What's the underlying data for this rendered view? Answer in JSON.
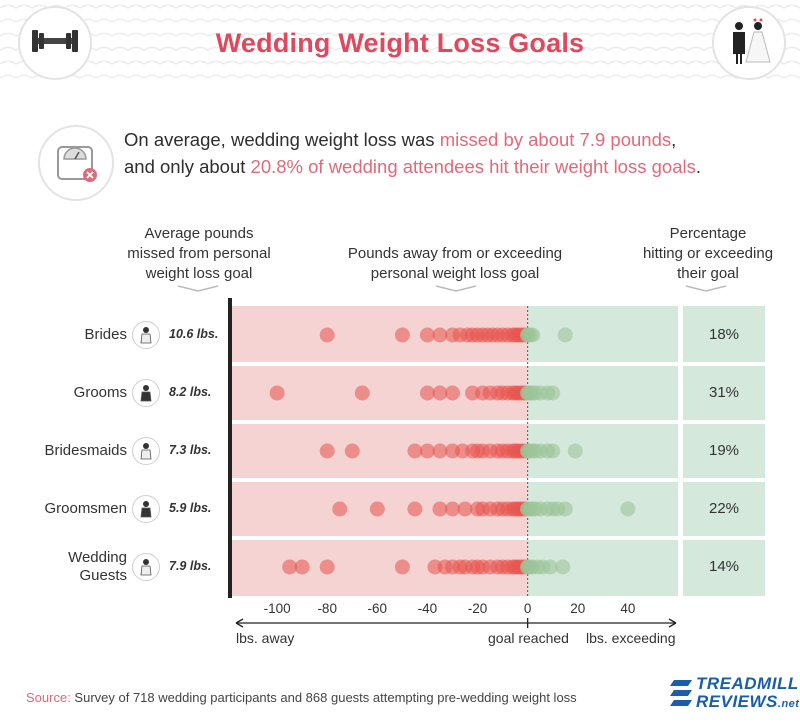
{
  "header": {
    "title": "Wedding Weight Loss Goals"
  },
  "summary": {
    "line1_pre": "On average, wedding weight loss was ",
    "line1_hl": "missed by about 7.9 pounds",
    "line1_post": ",",
    "line2_pre": "and only about ",
    "line2_hl": "20.8% of wedding attendees hit their weight loss goals",
    "line2_post": "."
  },
  "columns": {
    "left_line1": "Average pounds",
    "left_line2": "missed from personal",
    "left_line3": "weight loss goal",
    "mid_line1": "Pounds away from or exceeding",
    "mid_line2": "personal weight loss goal",
    "right_line1": "Percentage",
    "right_line2": "hitting or exceeding",
    "right_line3": "their goal"
  },
  "axis_notes": {
    "left": "lbs. away",
    "center": "goal reached",
    "right": "lbs. exceeding"
  },
  "source": {
    "label": "Source:",
    "text": " Survey of 718 wedding participants and 868 guests attempting pre-wedding weight loss"
  },
  "logo": {
    "line1": "TREADMILL",
    "line2": "REVIEWS",
    "suffix": ".net"
  },
  "colors": {
    "title": "#e0495d",
    "highlight": "#e0697a",
    "missed_bg": "#f4d3d2",
    "exceed_bg": "#d4e9dc",
    "dot_red": "#e8544f",
    "dot_green": "#9cc49a",
    "logo": "#1a5ea8"
  },
  "chart_data": {
    "type": "scatter",
    "xlim": [
      -118,
      60
    ],
    "x_ticks": [
      -100,
      -80,
      -60,
      -40,
      -20,
      0,
      20,
      40
    ],
    "x_tick_labels": [
      "-100",
      "-80",
      "-60",
      "-40",
      "-20",
      "0",
      "20",
      "40"
    ],
    "series": [
      {
        "name": "Brides",
        "line1": "Brides",
        "line2": "",
        "avg_missed": "10.6 lbs.",
        "pct_hit": "18%",
        "icon": "bride-icon",
        "points": [
          -80,
          -50,
          -40,
          -35,
          -30,
          -27,
          -24,
          -22,
          -20,
          -18,
          -16,
          -14,
          -12,
          -10,
          -8,
          -6,
          -5,
          -4,
          -3,
          -2,
          -1,
          0,
          0,
          1,
          2,
          15
        ]
      },
      {
        "name": "Grooms",
        "line1": "Grooms",
        "line2": "",
        "avg_missed": "8.2 lbs.",
        "pct_hit": "31%",
        "icon": "groom-icon",
        "points": [
          -100,
          -66,
          -40,
          -35,
          -30,
          -22,
          -18,
          -15,
          -12,
          -10,
          -8,
          -6,
          -5,
          -4,
          -3,
          -2,
          -1,
          0,
          0,
          1,
          2,
          3,
          5,
          8,
          10
        ]
      },
      {
        "name": "Bridesmaids",
        "line1": "Bridesmaids",
        "line2": "",
        "avg_missed": "7.3 lbs.",
        "pct_hit": "19%",
        "icon": "bridesmaid-icon",
        "points": [
          -80,
          -70,
          -45,
          -40,
          -35,
          -30,
          -26,
          -22,
          -20,
          -18,
          -15,
          -12,
          -10,
          -8,
          -6,
          -5,
          -4,
          -3,
          -2,
          -1,
          0,
          0,
          1,
          2,
          3,
          5,
          8,
          10,
          19
        ]
      },
      {
        "name": "Groomsmen",
        "line1": "Groomsmen",
        "line2": "",
        "avg_missed": "5.9 lbs.",
        "pct_hit": "22%",
        "icon": "groomsman-icon",
        "points": [
          -75,
          -60,
          -45,
          -35,
          -30,
          -25,
          -20,
          -18,
          -15,
          -12,
          -10,
          -8,
          -6,
          -5,
          -4,
          -3,
          -2,
          -1,
          0,
          0,
          1,
          2,
          3,
          5,
          8,
          10,
          12,
          15,
          40
        ]
      },
      {
        "name": "Wedding Guests",
        "line1": "Wedding",
        "line2": "Guests",
        "avg_missed": "7.9 lbs.",
        "pct_hit": "14%",
        "icon": "guests-icon",
        "points": [
          -95,
          -90,
          -80,
          -50,
          -37,
          -33,
          -30,
          -27,
          -25,
          -22,
          -20,
          -18,
          -15,
          -12,
          -10,
          -8,
          -6,
          -5,
          -4,
          -3,
          -2,
          -1,
          0,
          0,
          1,
          2,
          4,
          6,
          9,
          14
        ]
      }
    ]
  }
}
